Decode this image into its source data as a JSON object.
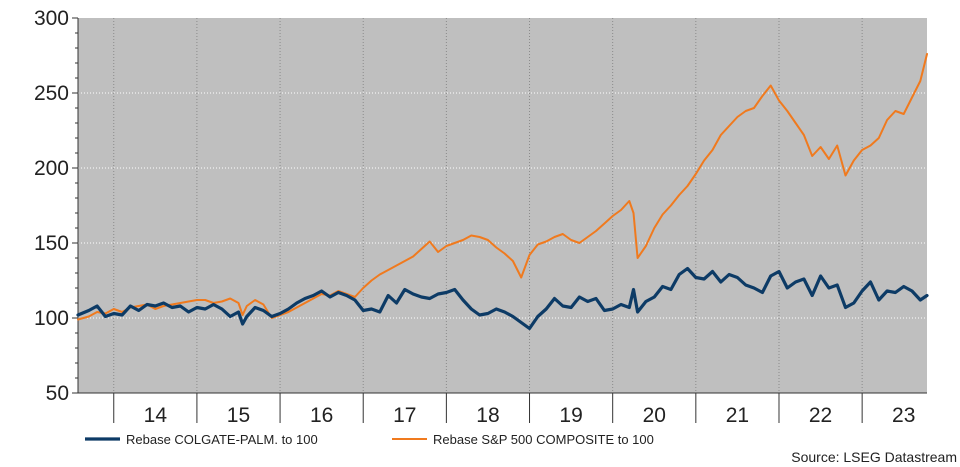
{
  "chart_data": {
    "type": "line",
    "title": "",
    "xlabel": "",
    "ylabel": "",
    "ylim": [
      50,
      300
    ],
    "y_ticks": [
      50,
      100,
      150,
      200,
      250,
      300
    ],
    "x_range": [
      2013.57,
      2023.78
    ],
    "x_ticks": [
      {
        "label": "14",
        "year": 2014
      },
      {
        "label": "15",
        "year": 2015
      },
      {
        "label": "16",
        "year": 2016
      },
      {
        "label": "17",
        "year": 2017
      },
      {
        "label": "18",
        "year": 2018
      },
      {
        "label": "19",
        "year": 2019
      },
      {
        "label": "20",
        "year": 2020
      },
      {
        "label": "21",
        "year": 2021
      },
      {
        "label": "22",
        "year": 2022
      },
      {
        "label": "23",
        "year": 2023
      }
    ],
    "grid": true,
    "plot_background": "#bfbfbf",
    "legend_position": "bottom",
    "source": "Source: LSEG Datastream",
    "series": [
      {
        "name": "Rebase COLGATE-PALM. to 100",
        "color": "#0d3b66",
        "x": [
          2013.57,
          2013.7,
          2013.8,
          2013.9,
          2014.0,
          2014.1,
          2014.2,
          2014.3,
          2014.4,
          2014.5,
          2014.6,
          2014.7,
          2014.8,
          2014.9,
          2015.0,
          2015.1,
          2015.2,
          2015.3,
          2015.4,
          2015.5,
          2015.55,
          2015.6,
          2015.7,
          2015.8,
          2015.9,
          2016.0,
          2016.1,
          2016.2,
          2016.3,
          2016.4,
          2016.5,
          2016.6,
          2016.7,
          2016.8,
          2016.9,
          2017.0,
          2017.1,
          2017.2,
          2017.3,
          2017.4,
          2017.5,
          2017.6,
          2017.7,
          2017.8,
          2017.9,
          2018.0,
          2018.1,
          2018.2,
          2018.3,
          2018.4,
          2018.5,
          2018.6,
          2018.7,
          2018.8,
          2018.9,
          2019.0,
          2019.1,
          2019.2,
          2019.3,
          2019.4,
          2019.5,
          2019.6,
          2019.7,
          2019.8,
          2019.9,
          2020.0,
          2020.1,
          2020.2,
          2020.25,
          2020.3,
          2020.4,
          2020.5,
          2020.6,
          2020.7,
          2020.8,
          2020.9,
          2021.0,
          2021.1,
          2021.2,
          2021.3,
          2021.4,
          2021.5,
          2021.6,
          2021.7,
          2021.8,
          2021.9,
          2022.0,
          2022.1,
          2022.2,
          2022.3,
          2022.4,
          2022.5,
          2022.6,
          2022.7,
          2022.8,
          2022.9,
          2023.0,
          2023.1,
          2023.2,
          2023.3,
          2023.4,
          2023.5,
          2023.6,
          2023.7,
          2023.78
        ],
        "y": [
          102,
          105,
          108,
          101,
          103,
          102,
          108,
          105,
          109,
          108,
          110,
          107,
          108,
          104,
          107,
          106,
          109,
          106,
          101,
          104,
          96,
          101,
          107,
          105,
          101,
          103,
          106,
          110,
          113,
          115,
          118,
          114,
          117,
          115,
          112,
          105,
          106,
          104,
          115,
          110,
          119,
          116,
          114,
          113,
          116,
          117,
          119,
          112,
          106,
          102,
          103,
          106,
          104,
          101,
          97,
          93,
          101,
          106,
          113,
          108,
          107,
          114,
          111,
          113,
          105,
          106,
          109,
          107,
          119,
          104,
          111,
          114,
          121,
          119,
          129,
          133,
          127,
          126,
          131,
          124,
          129,
          127,
          122,
          120,
          117,
          128,
          131,
          120,
          124,
          126,
          115,
          128,
          120,
          122,
          107,
          110,
          118,
          124,
          112,
          118,
          117,
          121,
          118,
          112,
          115
        ]
      },
      {
        "name": "Rebase S&P 500 COMPOSITE to 100",
        "color": "#f07a1e",
        "x": [
          2013.57,
          2013.7,
          2013.8,
          2013.9,
          2014.0,
          2014.1,
          2014.2,
          2014.3,
          2014.4,
          2014.5,
          2014.6,
          2014.7,
          2014.8,
          2014.9,
          2015.0,
          2015.1,
          2015.2,
          2015.3,
          2015.4,
          2015.5,
          2015.55,
          2015.6,
          2015.7,
          2015.8,
          2015.9,
          2016.0,
          2016.1,
          2016.2,
          2016.3,
          2016.4,
          2016.5,
          2016.6,
          2016.7,
          2016.8,
          2016.9,
          2017.0,
          2017.1,
          2017.2,
          2017.3,
          2017.4,
          2017.5,
          2017.6,
          2017.7,
          2017.8,
          2017.9,
          2018.0,
          2018.1,
          2018.2,
          2018.3,
          2018.4,
          2018.5,
          2018.6,
          2018.7,
          2018.8,
          2018.9,
          2019.0,
          2019.1,
          2019.2,
          2019.3,
          2019.4,
          2019.5,
          2019.6,
          2019.7,
          2019.8,
          2019.9,
          2020.0,
          2020.1,
          2020.2,
          2020.25,
          2020.3,
          2020.4,
          2020.5,
          2020.6,
          2020.7,
          2020.8,
          2020.9,
          2021.0,
          2021.1,
          2021.2,
          2021.3,
          2021.4,
          2021.5,
          2021.6,
          2021.7,
          2021.8,
          2021.9,
          2022.0,
          2022.1,
          2022.2,
          2022.3,
          2022.4,
          2022.5,
          2022.6,
          2022.7,
          2022.8,
          2022.9,
          2023.0,
          2023.1,
          2023.2,
          2023.3,
          2023.4,
          2023.5,
          2023.6,
          2023.7,
          2023.78
        ],
        "y": [
          99,
          101,
          104,
          103,
          106,
          104,
          107,
          108,
          109,
          106,
          108,
          109,
          110,
          111,
          112,
          112,
          110,
          111,
          113,
          110,
          102,
          108,
          112,
          109,
          100,
          102,
          104,
          107,
          110,
          113,
          116,
          115,
          118,
          116,
          114,
          120,
          125,
          129,
          132,
          135,
          138,
          141,
          146,
          151,
          144,
          148,
          150,
          152,
          155,
          154,
          152,
          147,
          143,
          138,
          127,
          142,
          149,
          151,
          154,
          156,
          152,
          150,
          154,
          158,
          163,
          168,
          172,
          178,
          170,
          140,
          148,
          160,
          169,
          175,
          182,
          188,
          196,
          205,
          212,
          222,
          228,
          234,
          238,
          240,
          248,
          255,
          245,
          238,
          230,
          222,
          208,
          214,
          206,
          215,
          195,
          205,
          212,
          215,
          220,
          232,
          238,
          236,
          247,
          258,
          276
        ]
      }
    ]
  }
}
